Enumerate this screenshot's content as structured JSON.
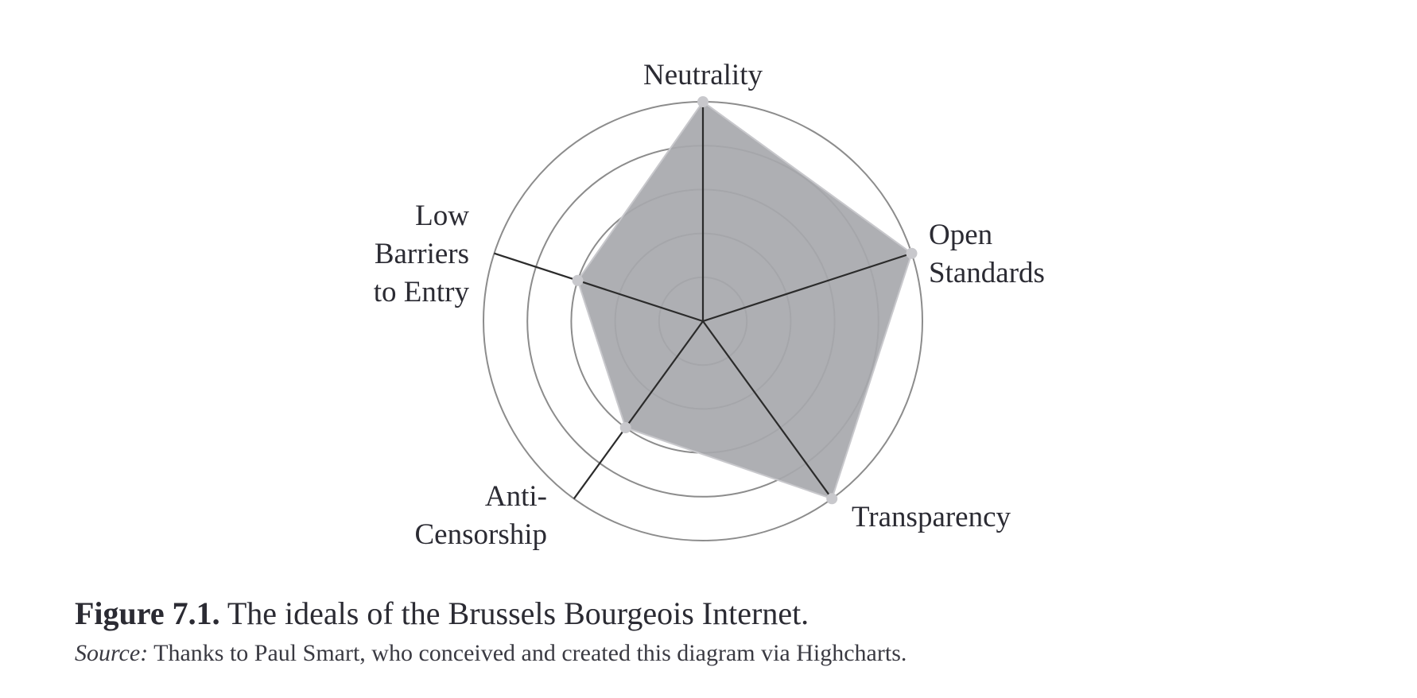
{
  "chart_data": {
    "type": "radar",
    "axes": [
      {
        "key": "neutrality",
        "label_lines": [
          "Neutrality"
        ]
      },
      {
        "key": "open-standards",
        "label_lines": [
          "Open",
          "Standards"
        ]
      },
      {
        "key": "transparency",
        "label_lines": [
          "Transparency"
        ]
      },
      {
        "key": "anti-censorship",
        "label_lines": [
          "Anti-",
          "Censorship"
        ]
      },
      {
        "key": "low-barriers",
        "label_lines": [
          "Low",
          "Barriers",
          "to Entry"
        ]
      }
    ],
    "values": [
      5,
      5,
      5,
      3,
      3
    ],
    "rlim": [
      0,
      5
    ],
    "rings": 5,
    "series_fill": "#a7a8ac",
    "ring_color": "#8c8c8c",
    "axis_color": "#2b2b2b",
    "marker_color": "#c8c8cc"
  },
  "caption": {
    "label": "Figure 7.1.",
    "text": " The ideals of the Brussels Bourgeois Internet."
  },
  "source": {
    "label": "Source:",
    "text": " Thanks to Paul Smart, who conceived and created this diagram via Highcharts."
  }
}
